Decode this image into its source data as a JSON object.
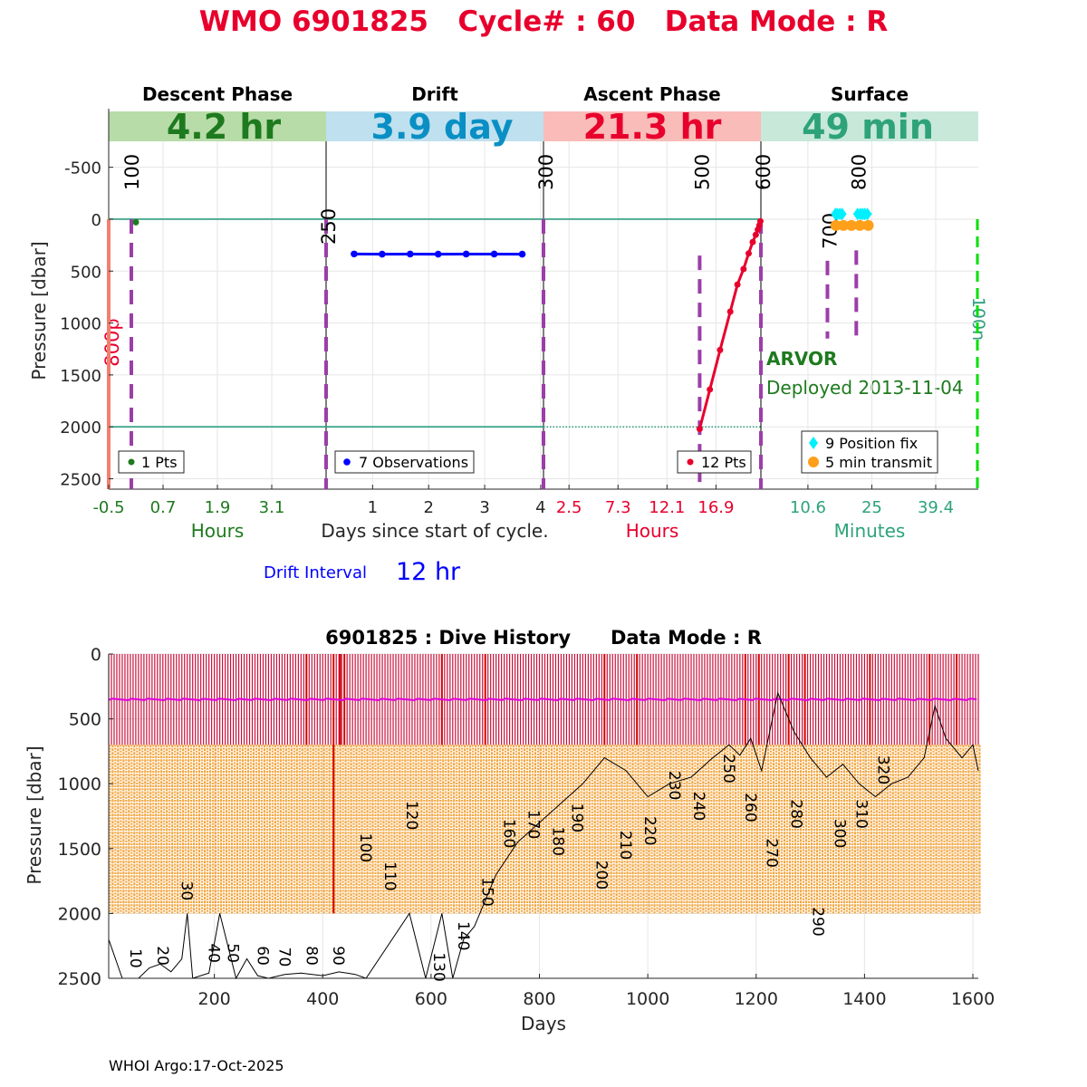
{
  "header": {
    "title": "WMO 6901825   Cycle# : 60   Data Mode : R",
    "title_color": "#e8002d"
  },
  "colors": {
    "descent_band": "#b8dca8",
    "descent_text": "#1e7a1e",
    "drift_band": "#bfe0ee",
    "drift_text": "#0a8fc4",
    "ascent_band": "#f9bcb8",
    "ascent_text": "#e8002d",
    "surface_band": "#c8e8da",
    "surface_text": "#2ea37a",
    "purple": "#9b3ea8",
    "drift_line": "#0000ff",
    "ascent_line": "#e8002d",
    "cyan": "#00f0ff",
    "orange": "#ff9f1a",
    "teal": "#2e9e80",
    "green_dash": "#00e000"
  },
  "chart_data": [
    {
      "type": "line",
      "title": "Cycle timeline (4 panels)",
      "ylabel": "Pressure [dbar]",
      "ylim": [
        2600,
        -750
      ],
      "yticks": [
        -500,
        0,
        500,
        1000,
        1500,
        2000,
        2500
      ],
      "xlabel_center": "Days since start of cycle.",
      "panels": [
        {
          "key": "descent",
          "phase": "Descent Phase",
          "duration": "4.2 hr",
          "xunit": "Hours",
          "xlim": [
            -0.5,
            4.3
          ],
          "xticks": [
            -0.5,
            0.7,
            1.9,
            3.1
          ],
          "legend": "1 Pts",
          "points": [
            {
              "x": 0.1,
              "y": 30
            }
          ],
          "events": [
            {
              "label": "100",
              "x": 0.0
            }
          ],
          "left_label": "800p"
        },
        {
          "key": "drift",
          "phase": "Drift",
          "duration": "3.9 day",
          "xunit": "",
          "xlim": [
            0.17,
            4.05
          ],
          "xticks": [
            1,
            2,
            3,
            4
          ],
          "legend": "7 Observations",
          "points": [
            {
              "x": 0.67,
              "y": 335
            },
            {
              "x": 1.17,
              "y": 337
            },
            {
              "x": 1.67,
              "y": 336
            },
            {
              "x": 2.17,
              "y": 337
            },
            {
              "x": 2.67,
              "y": 336
            },
            {
              "x": 3.17,
              "y": 336
            },
            {
              "x": 3.67,
              "y": 337
            }
          ],
          "events": [
            {
              "label": "250",
              "x": 0.17
            },
            {
              "label": "300",
              "x": 4.05
            }
          ]
        },
        {
          "key": "ascent",
          "phase": "Ascent Phase",
          "duration": "21.3 hr",
          "xunit": "Hours",
          "xlim": [
            0.0,
            21.3
          ],
          "xticks": [
            2.5,
            7.3,
            12.1,
            16.9
          ],
          "legend": "12 Pts",
          "points": [
            {
              "x": 15.3,
              "y": 2020
            },
            {
              "x": 16.3,
              "y": 1640
            },
            {
              "x": 17.3,
              "y": 1260
            },
            {
              "x": 18.3,
              "y": 890
            },
            {
              "x": 19.0,
              "y": 630
            },
            {
              "x": 19.6,
              "y": 480
            },
            {
              "x": 20.1,
              "y": 330
            },
            {
              "x": 20.5,
              "y": 220
            },
            {
              "x": 20.8,
              "y": 150
            },
            {
              "x": 21.0,
              "y": 100
            },
            {
              "x": 21.15,
              "y": 60
            },
            {
              "x": 21.25,
              "y": 20
            }
          ],
          "events": [
            {
              "label": "500",
              "x": 15.3
            },
            {
              "label": "600",
              "x": 21.3
            }
          ],
          "park_depth": 2000
        },
        {
          "key": "surface",
          "phase": "Surface",
          "duration": "49 min",
          "xunit": "Minutes",
          "xlim": [
            0.0,
            49.0
          ],
          "xticks": [
            10.6,
            25,
            39.4
          ],
          "legend_fix": "9 Position fix",
          "legend_tx": "5 min transmit",
          "fixes": [
            16.8,
            17.2,
            17.8,
            18.3,
            21.8,
            22.4,
            22.9,
            23.4,
            24.0
          ],
          "transmits": [
            16.9,
            18.6,
            20.4,
            22.3,
            24.2
          ],
          "events": [
            {
              "label": "700",
              "x": 15.0
            },
            {
              "label": "800",
              "x": 21.5
            }
          ],
          "right_label": "100n",
          "float_type": "ARVOR",
          "deployed": "Deployed 2013-11-04"
        }
      ],
      "drift_interval_label": "Drift Interval",
      "drift_interval_value": "12 hr"
    },
    {
      "type": "line",
      "title": "6901825 : Dive History      Data Mode : R",
      "xlabel": "Days",
      "ylabel": "Pressure [dbar]",
      "xlim": [
        5,
        1610
      ],
      "ylim": [
        2500,
        0
      ],
      "xticks": [
        200,
        400,
        600,
        800,
        1000,
        1200,
        1400,
        1600
      ],
      "yticks": [
        0,
        500,
        1000,
        1500,
        2000,
        2500
      ],
      "cycle_count": 322,
      "cycle_interval_days": 5,
      "park_pressure": 350,
      "profile_pressure": 2000,
      "ascent_start_pressure": 700,
      "bathymetry": [
        [
          5,
          2200
        ],
        [
          30,
          2500
        ],
        [
          60,
          2500
        ],
        [
          80,
          2420
        ],
        [
          100,
          2390
        ],
        [
          120,
          2450
        ],
        [
          140,
          2350
        ],
        [
          150,
          2000
        ],
        [
          160,
          2500
        ],
        [
          190,
          2460
        ],
        [
          210,
          2000
        ],
        [
          240,
          2500
        ],
        [
          260,
          2350
        ],
        [
          280,
          2480
        ],
        [
          300,
          2500
        ],
        [
          330,
          2470
        ],
        [
          360,
          2460
        ],
        [
          400,
          2480
        ],
        [
          430,
          2450
        ],
        [
          460,
          2470
        ],
        [
          480,
          2500
        ],
        [
          560,
          2000
        ],
        [
          590,
          2500
        ],
        [
          620,
          2000
        ],
        [
          640,
          2500
        ],
        [
          660,
          2200
        ],
        [
          680,
          2100
        ],
        [
          700,
          1900
        ],
        [
          720,
          1700
        ],
        [
          760,
          1450
        ],
        [
          800,
          1300
        ],
        [
          840,
          1150
        ],
        [
          880,
          1000
        ],
        [
          920,
          800
        ],
        [
          960,
          900
        ],
        [
          1000,
          1100
        ],
        [
          1040,
          1000
        ],
        [
          1080,
          950
        ],
        [
          1120,
          800
        ],
        [
          1150,
          700
        ],
        [
          1170,
          780
        ],
        [
          1190,
          650
        ],
        [
          1210,
          900
        ],
        [
          1240,
          300
        ],
        [
          1270,
          600
        ],
        [
          1300,
          800
        ],
        [
          1330,
          950
        ],
        [
          1360,
          850
        ],
        [
          1390,
          1000
        ],
        [
          1420,
          1100
        ],
        [
          1450,
          1000
        ],
        [
          1480,
          950
        ],
        [
          1510,
          800
        ],
        [
          1530,
          400
        ],
        [
          1550,
          650
        ],
        [
          1580,
          800
        ],
        [
          1600,
          700
        ],
        [
          1610,
          900
        ]
      ],
      "cycle_labels": [
        {
          "label": "10",
          "x": 55,
          "y": 2270
        },
        {
          "label": "20",
          "x": 105,
          "y": 2250
        },
        {
          "label": "30",
          "x": 150,
          "y": 1750
        },
        {
          "label": "40",
          "x": 200,
          "y": 2230
        },
        {
          "label": "50",
          "x": 235,
          "y": 2230
        },
        {
          "label": "60",
          "x": 290,
          "y": 2250
        },
        {
          "label": "70",
          "x": 330,
          "y": 2260
        },
        {
          "label": "80",
          "x": 380,
          "y": 2250
        },
        {
          "label": "90",
          "x": 430,
          "y": 2250
        },
        {
          "label": "100",
          "x": 480,
          "y": 1380
        },
        {
          "label": "110",
          "x": 525,
          "y": 1600
        },
        {
          "label": "120",
          "x": 565,
          "y": 1130
        },
        {
          "label": "130",
          "x": 615,
          "y": 2300
        },
        {
          "label": "140",
          "x": 660,
          "y": 2060
        },
        {
          "label": "150",
          "x": 705,
          "y": 1720
        },
        {
          "label": "160",
          "x": 745,
          "y": 1270
        },
        {
          "label": "170",
          "x": 790,
          "y": 1200
        },
        {
          "label": "180",
          "x": 835,
          "y": 1330
        },
        {
          "label": "190",
          "x": 870,
          "y": 1150
        },
        {
          "label": "200",
          "x": 915,
          "y": 1590
        },
        {
          "label": "210",
          "x": 960,
          "y": 1360
        },
        {
          "label": "220",
          "x": 1005,
          "y": 1250
        },
        {
          "label": "230",
          "x": 1050,
          "y": 900
        },
        {
          "label": "240",
          "x": 1095,
          "y": 1060
        },
        {
          "label": "250",
          "x": 1150,
          "y": 770
        },
        {
          "label": "260",
          "x": 1190,
          "y": 1070
        },
        {
          "label": "270",
          "x": 1230,
          "y": 1420
        },
        {
          "label": "280",
          "x": 1275,
          "y": 1120
        },
        {
          "label": "290",
          "x": 1315,
          "y": 1950
        },
        {
          "label": "300",
          "x": 1355,
          "y": 1270
        },
        {
          "label": "310",
          "x": 1395,
          "y": 1120
        },
        {
          "label": "320",
          "x": 1435,
          "y": 780
        }
      ]
    }
  ],
  "footer": "WHOI Argo:17-Oct-2025"
}
